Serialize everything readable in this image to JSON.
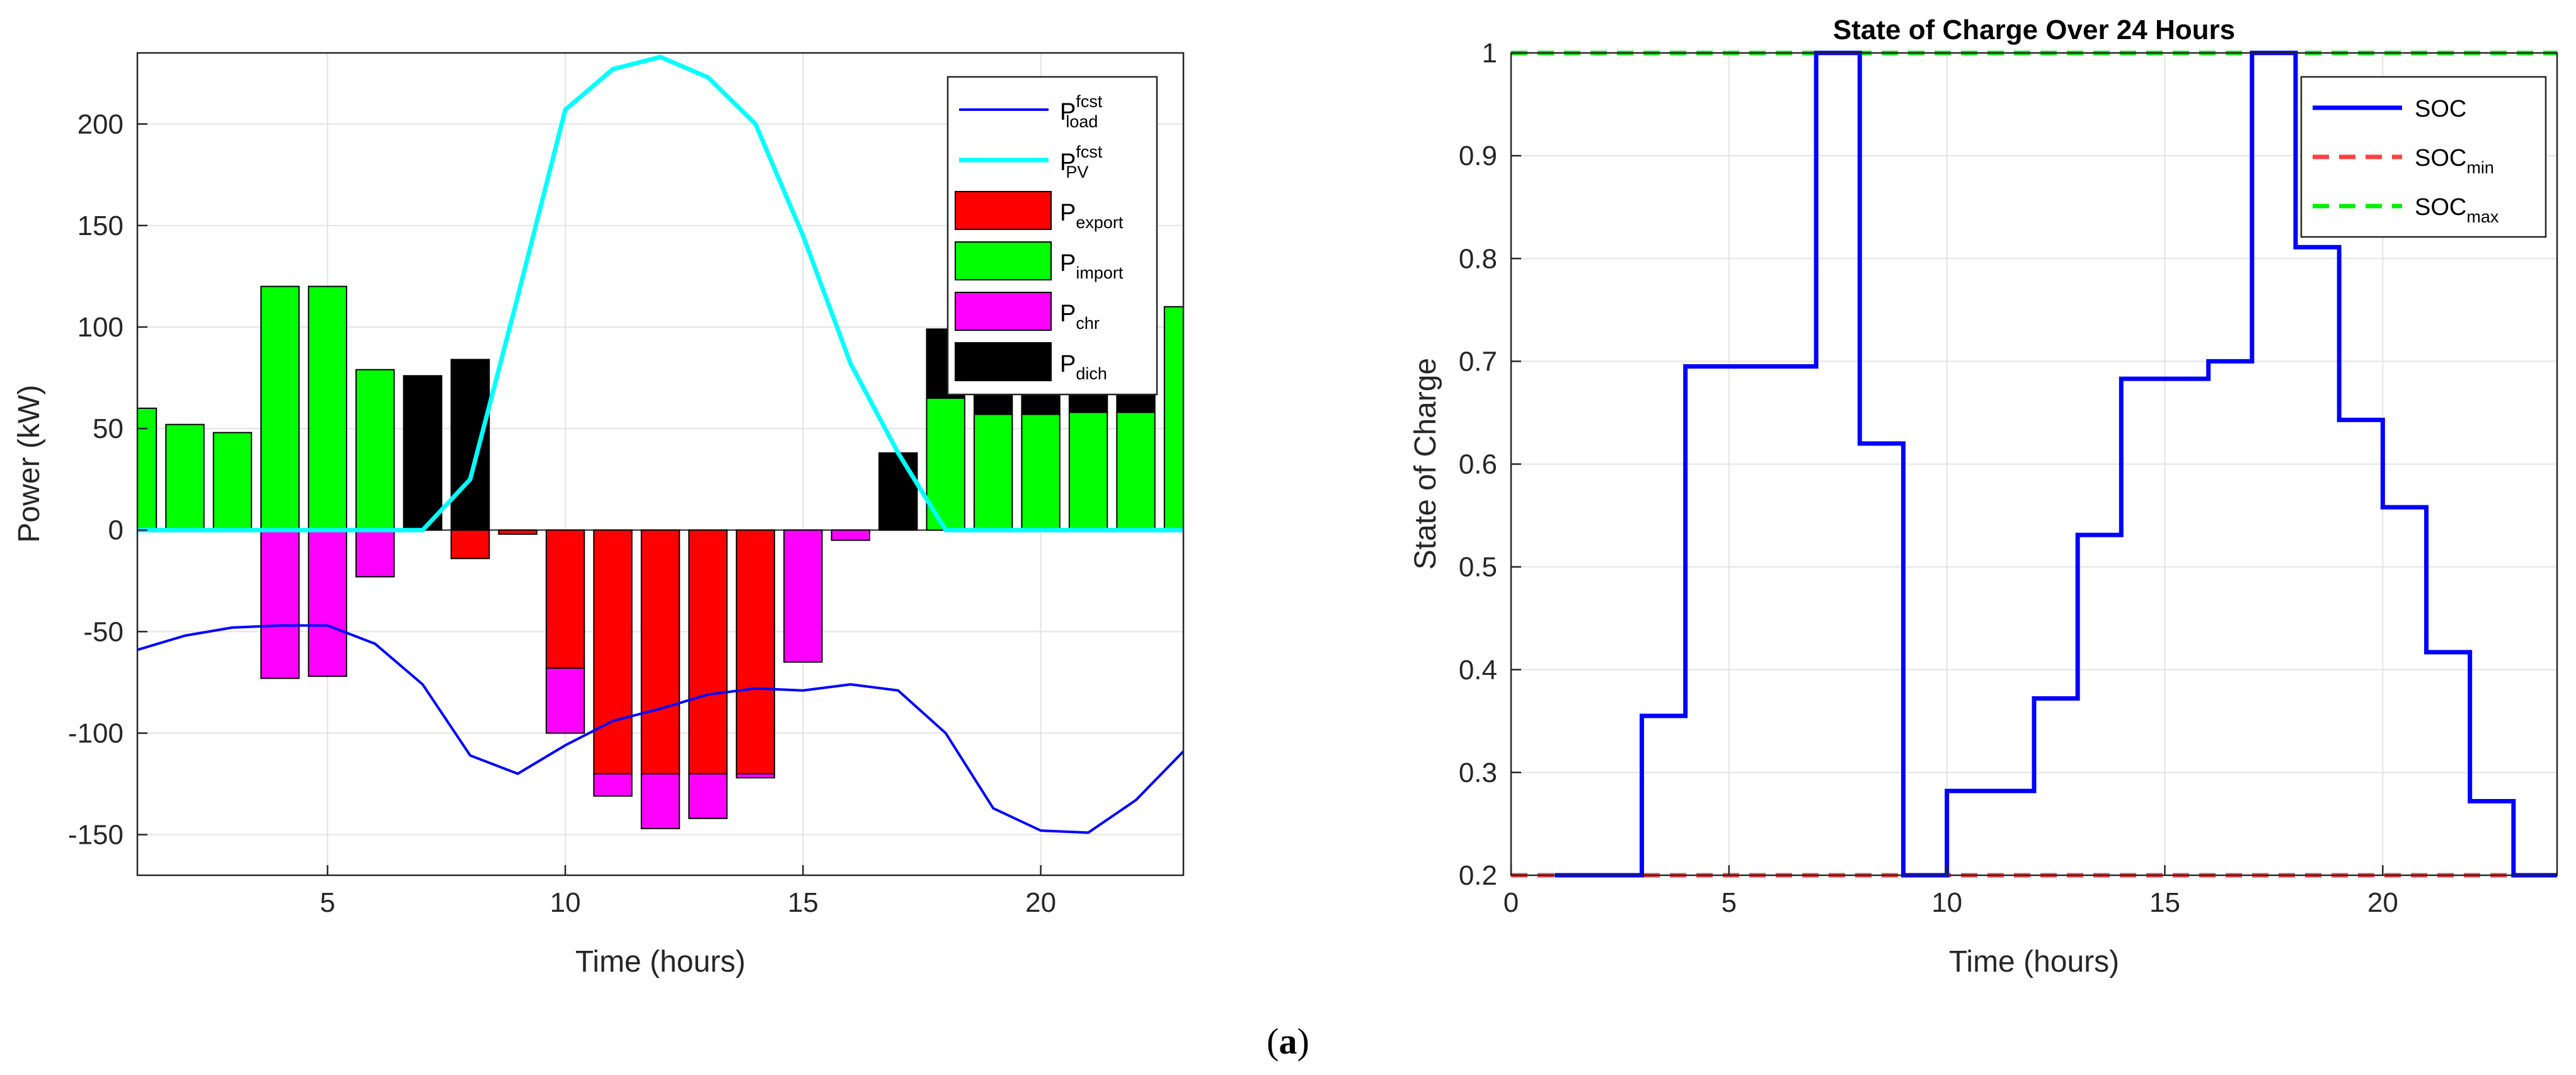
{
  "caption": {
    "letter": "a",
    "open": "(",
    "close": ")"
  },
  "chart_data": [
    {
      "type": "bar",
      "title": "",
      "xlabel": "Time (hours)",
      "ylabel": "Power (kW)",
      "xlim": [
        1,
        23
      ],
      "ylim": [
        -170,
        235
      ],
      "xticks": [
        5,
        10,
        15,
        20
      ],
      "yticks": [
        -150,
        -100,
        -50,
        0,
        50,
        100,
        150,
        200
      ],
      "grid": true,
      "legend_position": "top-right",
      "x": [
        1,
        2,
        3,
        4,
        5,
        6,
        7,
        8,
        9,
        10,
        11,
        12,
        13,
        14,
        15,
        16,
        17,
        18,
        19,
        20,
        21,
        22,
        23
      ],
      "lines": [
        {
          "name": "P",
          "sup": "fcst",
          "sub": "load",
          "color": "#0000FF",
          "values": [
            -59,
            -52,
            -48,
            -47,
            -47,
            -56,
            -76,
            -111,
            -120,
            -106,
            -94,
            -88,
            -81,
            -78,
            -79,
            -76,
            -79,
            -100,
            -137,
            -148,
            -149,
            -133,
            -109
          ]
        },
        {
          "name": "P",
          "sup": "fcst",
          "sub": "PV",
          "color": "#00FFFF",
          "values": [
            0,
            0,
            0,
            0,
            0,
            0,
            0,
            25,
            115,
            207,
            227,
            233,
            223,
            200,
            145,
            82,
            38,
            0,
            0,
            0,
            0,
            0,
            0
          ]
        }
      ],
      "bars": [
        {
          "name": "P",
          "sub": "export",
          "color": "#FF0000",
          "values": [
            0,
            0,
            0,
            0,
            0,
            0,
            0,
            -14,
            -2,
            -68,
            -120,
            -120,
            -120,
            -120,
            0,
            0,
            0,
            0,
            0,
            0,
            0,
            0,
            0
          ]
        },
        {
          "name": "P",
          "sub": "import",
          "color": "#00FF00",
          "values": [
            60,
            52,
            48,
            120,
            120,
            79,
            0,
            0,
            0,
            0,
            0,
            0,
            0,
            0,
            0,
            0,
            0,
            65,
            57,
            57,
            58,
            58,
            110
          ]
        },
        {
          "name": "P",
          "sub": "chr",
          "color": "#FF00FF",
          "values": [
            0,
            0,
            0,
            -73,
            -72,
            -23,
            0,
            0,
            0,
            -32,
            -11,
            -27,
            -22,
            -2,
            -65,
            -5,
            0,
            0,
            0,
            0,
            0,
            0,
            0
          ]
        },
        {
          "name": "P",
          "sub": "dich",
          "color": "#000000",
          "values": [
            0,
            0,
            0,
            0,
            0,
            0,
            76,
            84,
            0,
            0,
            0,
            0,
            0,
            0,
            0,
            0,
            38,
            34,
            18,
            28,
            29,
            15,
            0
          ]
        }
      ]
    },
    {
      "type": "line",
      "title": "State of Charge Over 24 Hours",
      "xlabel": "Time (hours)",
      "ylabel": "State of Charge",
      "xlim": [
        0,
        24
      ],
      "ylim": [
        0.2,
        1
      ],
      "xticks": [
        0,
        5,
        10,
        15,
        20
      ],
      "yticks": [
        0.2,
        0.3,
        0.4,
        0.5,
        0.6,
        0.7,
        0.8,
        0.9,
        1
      ],
      "grid": true,
      "legend_position": "top-right",
      "series": [
        {
          "name": "SOC",
          "sub": "",
          "color": "#0000FF",
          "style": "solid",
          "step": true,
          "x": [
            1,
            2,
            3,
            4,
            5,
            6,
            7,
            8,
            9,
            10,
            11,
            12,
            13,
            14,
            15,
            16,
            17,
            18,
            19,
            20,
            21,
            22,
            23,
            24
          ],
          "values": [
            0.2,
            0.2,
            0.355,
            0.695,
            0.695,
            0.695,
            1.0,
            0.62,
            0.2,
            0.282,
            0.282,
            0.372,
            0.531,
            0.683,
            0.683,
            0.7,
            1.0,
            0.811,
            0.643,
            0.558,
            0.417,
            0.272,
            0.2,
            0.2
          ]
        },
        {
          "name": "SOC",
          "sub": "min",
          "color": "#FF4040",
          "style": "dashed",
          "step": false,
          "x": [
            0,
            24
          ],
          "values": [
            0.2,
            0.2
          ]
        },
        {
          "name": "SOC",
          "sub": "max",
          "color": "#00EE00",
          "style": "dashed",
          "step": false,
          "x": [
            0,
            24
          ],
          "values": [
            1.0,
            1.0
          ]
        }
      ]
    }
  ]
}
